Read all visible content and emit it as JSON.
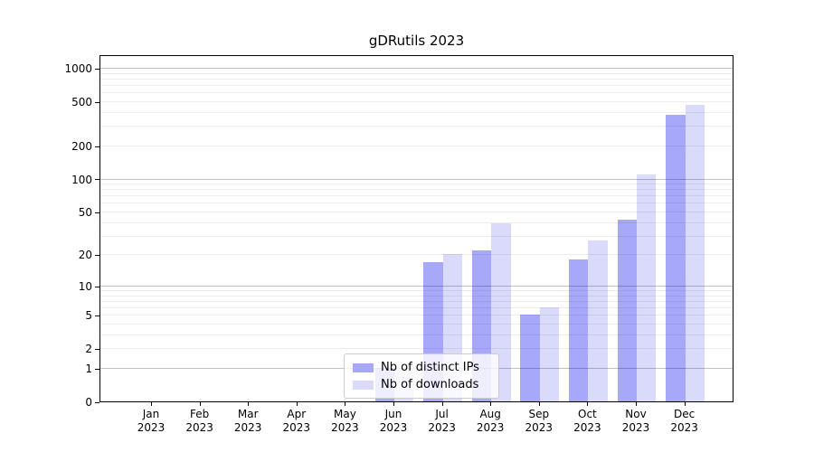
{
  "title": "gDRutils 2023",
  "chart_data": {
    "type": "bar",
    "title": "gDRutils 2023",
    "categories": [
      "Jan",
      "Feb",
      "Mar",
      "Apr",
      "May",
      "Jun",
      "Jul",
      "Aug",
      "Sep",
      "Oct",
      "Nov",
      "Dec"
    ],
    "year": "2023",
    "series": [
      {
        "name": "Nb of distinct IPs",
        "color": "#a8a8fa",
        "values": [
          0,
          0,
          0,
          0,
          0,
          1,
          17,
          22,
          5,
          18,
          42,
          380
        ]
      },
      {
        "name": "Nb of downloads",
        "color": "#dadafa",
        "values": [
          0,
          0,
          0,
          0,
          0,
          1,
          20,
          39,
          6,
          27,
          108,
          460
        ]
      }
    ],
    "yscale": "log1p",
    "ytick_labels": [
      "0",
      "1",
      "2",
      "5",
      "10",
      "20",
      "50",
      "100",
      "200",
      "500",
      "1000"
    ],
    "ytick_values": [
      0,
      1,
      2,
      5,
      10,
      20,
      50,
      100,
      200,
      500,
      1000
    ],
    "ylim": [
      0,
      1300
    ],
    "xlabel": "",
    "ylabel": "",
    "grid": "on",
    "grid_position": "above-bars",
    "major_grid_color": "rgba(0,0,0,0.24)",
    "minor_grid_color": "rgba(0,0,0,0.07)",
    "axis_color": "#000000",
    "legend_position": "lower-center",
    "legend_background": "rgba(255,255,255,0.8)"
  }
}
